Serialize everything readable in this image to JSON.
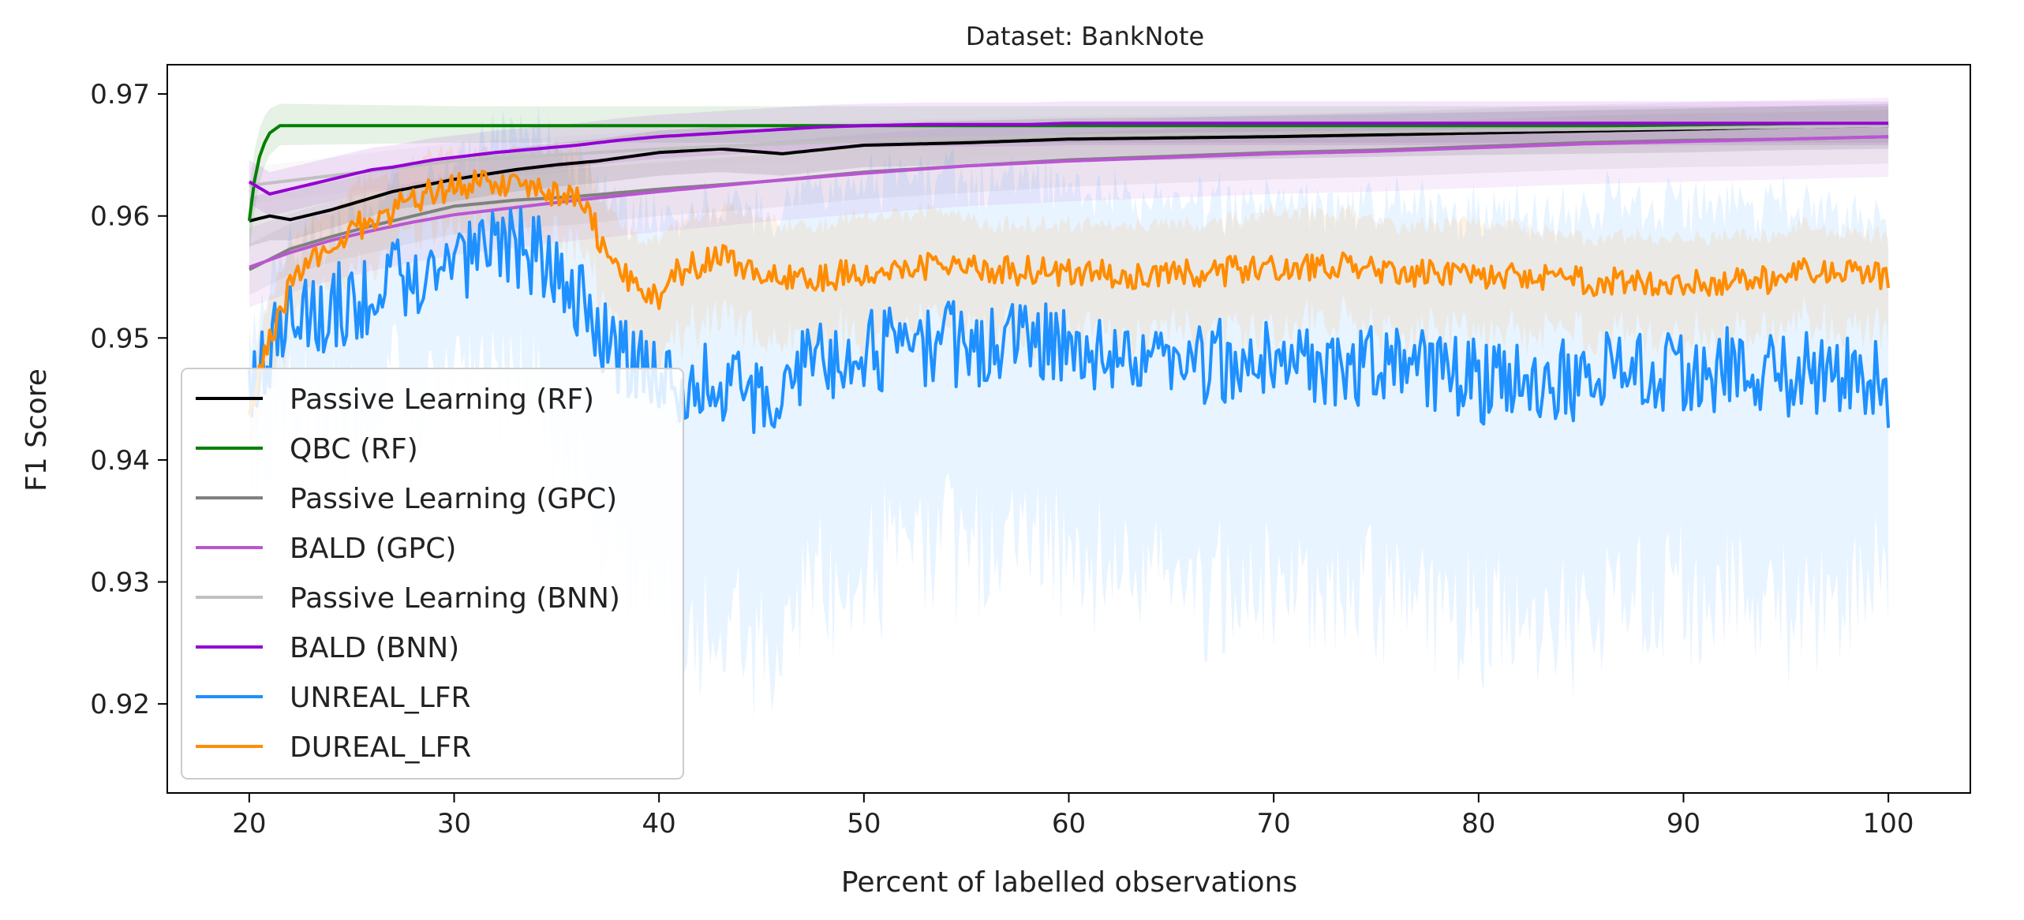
{
  "chart_data": {
    "type": "line",
    "title": "Dataset: BankNote",
    "xlabel": "Percent of labelled observations",
    "ylabel": "F1 Score",
    "xlim": [
      16,
      104
    ],
    "ylim": [
      0.9127,
      0.9724
    ],
    "xticks": [
      20,
      30,
      40,
      50,
      60,
      70,
      80,
      90,
      100
    ],
    "xtick_labels": [
      "20",
      "30",
      "40",
      "50",
      "60",
      "70",
      "80",
      "90",
      "100"
    ],
    "yticks": [
      0.92,
      0.93,
      0.94,
      0.95,
      0.96,
      0.97
    ],
    "ytick_labels": [
      "0.92",
      "0.93",
      "0.94",
      "0.95",
      "0.96",
      "0.97"
    ],
    "legend_position": "lower-left",
    "series": [
      {
        "name": "Passive Learning (RF)",
        "color": "#000000",
        "x": [
          20,
          21,
          22,
          23,
          24,
          25,
          27,
          30,
          33,
          35,
          37,
          40,
          43,
          46,
          50,
          55,
          60,
          70,
          80,
          90,
          95,
          100
        ],
        "y": [
          0.9596,
          0.96,
          0.9597,
          0.9601,
          0.9605,
          0.961,
          0.962,
          0.963,
          0.9638,
          0.9642,
          0.9645,
          0.9652,
          0.9655,
          0.9651,
          0.9658,
          0.966,
          0.9663,
          0.9665,
          0.9668,
          0.9671,
          0.9673,
          0.9674
        ],
        "band_lower": [
          0.9575,
          0.958,
          0.958,
          0.9585,
          0.959,
          0.9595,
          0.9605,
          0.9612,
          0.962,
          0.9624,
          0.9627,
          0.9633,
          0.9636,
          0.9633,
          0.964,
          0.9642,
          0.9645,
          0.9647,
          0.965,
          0.9652,
          0.9654,
          0.9655
        ],
        "band_upper": [
          0.9615,
          0.962,
          0.962,
          0.9625,
          0.9628,
          0.9632,
          0.964,
          0.9648,
          0.9656,
          0.966,
          0.9663,
          0.967,
          0.9673,
          0.967,
          0.9676,
          0.9678,
          0.968,
          0.9682,
          0.9685,
          0.9688,
          0.969,
          0.9692
        ]
      },
      {
        "name": "QBC (RF)",
        "color": "#008000",
        "x": [
          20,
          20.3,
          20.6,
          21,
          21.5,
          30,
          40,
          47,
          50,
          60,
          70,
          80,
          90,
          100
        ],
        "y": [
          0.9596,
          0.9635,
          0.9655,
          0.9668,
          0.9674,
          0.9674,
          0.9674,
          0.9674,
          0.9674,
          0.9674,
          0.9674,
          0.9674,
          0.9674,
          0.9674
        ],
        "band_lower": [
          0.957,
          0.961,
          0.9635,
          0.965,
          0.9658,
          0.966,
          0.966,
          0.966,
          0.966,
          0.966,
          0.966,
          0.966,
          0.966,
          0.966
        ],
        "band_upper": [
          0.962,
          0.966,
          0.9678,
          0.9688,
          0.9692,
          0.969,
          0.969,
          0.969,
          0.969,
          0.969,
          0.969,
          0.969,
          0.969,
          0.969
        ]
      },
      {
        "name": "Passive Learning (GPC)",
        "color": "#808080",
        "x": [
          20,
          22,
          24,
          26,
          28,
          30,
          33,
          36,
          40,
          45,
          50,
          55,
          60,
          65,
          70,
          75,
          80,
          85,
          90,
          95,
          100
        ],
        "y": [
          0.9556,
          0.9573,
          0.9583,
          0.9592,
          0.96,
          0.9608,
          0.9613,
          0.9616,
          0.9622,
          0.9628,
          0.9636,
          0.9641,
          0.9646,
          0.9649,
          0.9652,
          0.9654,
          0.9657,
          0.966,
          0.9662,
          0.9663,
          0.9665
        ],
        "band_lower": [
          0.9535,
          0.9552,
          0.9562,
          0.957,
          0.9578,
          0.9585,
          0.959,
          0.9593,
          0.96,
          0.9606,
          0.9614,
          0.9619,
          0.9624,
          0.9627,
          0.963,
          0.9632,
          0.9635,
          0.9638,
          0.964,
          0.9641,
          0.9643
        ],
        "band_upper": [
          0.9577,
          0.9594,
          0.9604,
          0.9614,
          0.9622,
          0.963,
          0.9636,
          0.9639,
          0.9644,
          0.965,
          0.9658,
          0.9663,
          0.9668,
          0.9671,
          0.9674,
          0.9676,
          0.9679,
          0.9682,
          0.9684,
          0.9685,
          0.9687
        ]
      },
      {
        "name": "BALD (GPC)",
        "color": "#BA55D3",
        "x": [
          20,
          22,
          24,
          26,
          28,
          30,
          33,
          36,
          40,
          45,
          50,
          55,
          60,
          65,
          70,
          75,
          80,
          85,
          90,
          95,
          100
        ],
        "y": [
          0.9558,
          0.957,
          0.958,
          0.9588,
          0.9595,
          0.9601,
          0.9607,
          0.9613,
          0.962,
          0.9628,
          0.9635,
          0.9641,
          0.9645,
          0.9648,
          0.9651,
          0.9653,
          0.9656,
          0.9659,
          0.9661,
          0.9663,
          0.9665
        ],
        "band_lower": [
          0.9525,
          0.9537,
          0.9547,
          0.9555,
          0.9562,
          0.9568,
          0.9574,
          0.958,
          0.9587,
          0.9595,
          0.9602,
          0.9608,
          0.9612,
          0.9615,
          0.9618,
          0.962,
          0.9623,
          0.9626,
          0.9628,
          0.963,
          0.9632
        ],
        "band_upper": [
          0.959,
          0.9602,
          0.9612,
          0.962,
          0.9627,
          0.9633,
          0.9639,
          0.9645,
          0.9652,
          0.966,
          0.9667,
          0.9673,
          0.9677,
          0.968,
          0.9683,
          0.9685,
          0.9688,
          0.9691,
          0.9693,
          0.9695,
          0.9697
        ]
      },
      {
        "name": "Passive Learning (BNN)",
        "color": "#C0C0C0",
        "x": [
          20,
          30,
          40,
          50,
          60,
          70,
          80,
          90,
          100
        ],
        "y": [
          0.9625,
          0.9645,
          0.9655,
          0.9662,
          0.9666,
          0.9668,
          0.967,
          0.9672,
          0.9674
        ],
        "band_lower": [
          0.961,
          0.963,
          0.964,
          0.9646,
          0.965,
          0.9652,
          0.9654,
          0.9656,
          0.9658
        ],
        "band_upper": [
          0.964,
          0.966,
          0.967,
          0.9678,
          0.9682,
          0.9684,
          0.9686,
          0.9688,
          0.969
        ]
      },
      {
        "name": "BALD (BNN)",
        "color": "#9400D3",
        "x": [
          20,
          21,
          22,
          23,
          24,
          25,
          26,
          27,
          28,
          29,
          30,
          32,
          34,
          36,
          38,
          40,
          43,
          46,
          48,
          50,
          53,
          56,
          58,
          60,
          65,
          70,
          75,
          80,
          85,
          90,
          95,
          100
        ],
        "y": [
          0.9628,
          0.9618,
          0.9622,
          0.9626,
          0.963,
          0.9634,
          0.9638,
          0.964,
          0.9643,
          0.9646,
          0.9648,
          0.9652,
          0.9655,
          0.9658,
          0.9662,
          0.9665,
          0.9668,
          0.9671,
          0.9673,
          0.9674,
          0.9675,
          0.9675,
          0.9675,
          0.9676,
          0.9676,
          0.9676,
          0.9676,
          0.9676,
          0.9676,
          0.9676,
          0.9676,
          0.9676
        ],
        "band_lower": [
          0.961,
          0.96,
          0.9604,
          0.9608,
          0.9612,
          0.9616,
          0.962,
          0.9622,
          0.9625,
          0.9628,
          0.963,
          0.9634,
          0.9637,
          0.964,
          0.9644,
          0.9647,
          0.965,
          0.9653,
          0.9655,
          0.9656,
          0.9657,
          0.9657,
          0.9657,
          0.9658,
          0.9658,
          0.9658,
          0.9658,
          0.9658,
          0.9658,
          0.9658,
          0.9658,
          0.9658
        ],
        "band_upper": [
          0.9646,
          0.9636,
          0.964,
          0.9644,
          0.9648,
          0.9652,
          0.9656,
          0.9658,
          0.9661,
          0.9664,
          0.9666,
          0.967,
          0.9673,
          0.9676,
          0.968,
          0.9683,
          0.9686,
          0.9689,
          0.9691,
          0.9692,
          0.9693,
          0.9693,
          0.9693,
          0.9694,
          0.9694,
          0.9694,
          0.9694,
          0.9694,
          0.9694,
          0.9694,
          0.9694,
          0.9694
        ]
      },
      {
        "name": "UNREAL_LFR",
        "color": "#1E90FF",
        "x": [
          20,
          20.5,
          21,
          22,
          23,
          24,
          25,
          26,
          27,
          28,
          29,
          30,
          31,
          32,
          33,
          34,
          35,
          36,
          37,
          38,
          39,
          40,
          41,
          42,
          43,
          44,
          45,
          46,
          47,
          48,
          49,
          50,
          52,
          54,
          56,
          58,
          60,
          62,
          64,
          66,
          68,
          70,
          72,
          74,
          76,
          78,
          80,
          82,
          84,
          86,
          88,
          90,
          92,
          94,
          96,
          98,
          100
        ],
        "y": [
          0.944,
          0.947,
          0.949,
          0.951,
          0.952,
          0.9525,
          0.953,
          0.9535,
          0.9545,
          0.955,
          0.9555,
          0.956,
          0.9565,
          0.957,
          0.9575,
          0.957,
          0.956,
          0.953,
          0.951,
          0.949,
          0.9475,
          0.946,
          0.946,
          0.946,
          0.9465,
          0.946,
          0.945,
          0.946,
          0.9475,
          0.948,
          0.9485,
          0.949,
          0.949,
          0.9495,
          0.9495,
          0.9495,
          0.949,
          0.9485,
          0.948,
          0.948,
          0.9482,
          0.9485,
          0.948,
          0.948,
          0.9475,
          0.947,
          0.9465,
          0.946,
          0.9465,
          0.947,
          0.9472,
          0.947,
          0.9475,
          0.9472,
          0.947,
          0.9468,
          0.946
        ],
        "band_lower": [
          0.94,
          0.942,
          0.943,
          0.944,
          0.945,
          0.945,
          0.945,
          0.946,
          0.947,
          0.947,
          0.948,
          0.948,
          0.947,
          0.947,
          0.948,
          0.946,
          0.944,
          0.941,
          0.938,
          0.935,
          0.932,
          0.93,
          0.928,
          0.927,
          0.928,
          0.927,
          0.926,
          0.928,
          0.93,
          0.931,
          0.932,
          0.933,
          0.934,
          0.935,
          0.935,
          0.935,
          0.934,
          0.933,
          0.932,
          0.931,
          0.931,
          0.932,
          0.931,
          0.931,
          0.93,
          0.929,
          0.928,
          0.928,
          0.929,
          0.93,
          0.93,
          0.93,
          0.931,
          0.93,
          0.93,
          0.93,
          0.933
        ],
        "band_upper": [
          0.948,
          0.951,
          0.954,
          0.956,
          0.957,
          0.958,
          0.959,
          0.96,
          0.961,
          0.962,
          0.962,
          0.963,
          0.964,
          0.965,
          0.966,
          0.966,
          0.965,
          0.963,
          0.962,
          0.96,
          0.959,
          0.959,
          0.959,
          0.96,
          0.96,
          0.96,
          0.959,
          0.96,
          0.961,
          0.961,
          0.962,
          0.962,
          0.962,
          0.962,
          0.962,
          0.962,
          0.961,
          0.961,
          0.96,
          0.96,
          0.96,
          0.961,
          0.96,
          0.96,
          0.96,
          0.959,
          0.959,
          0.959,
          0.959,
          0.96,
          0.96,
          0.96,
          0.96,
          0.96,
          0.96,
          0.959,
          0.959
        ],
        "noise_amplitude": 0.0035
      },
      {
        "name": "DUREAL_LFR",
        "color": "#FF8C00",
        "x": [
          20,
          20.5,
          21,
          21.5,
          22,
          23,
          24,
          25,
          26,
          27,
          28,
          29,
          30,
          31,
          32,
          33,
          34,
          35,
          36,
          36.5,
          37,
          37.5,
          38,
          39,
          40,
          41,
          42,
          43,
          44,
          45,
          46,
          48,
          50,
          52,
          54,
          56,
          58,
          60,
          62,
          64,
          66,
          68,
          70,
          72,
          74,
          76,
          78,
          80,
          82,
          84,
          86,
          88,
          90,
          92,
          94,
          96,
          98,
          100
        ],
        "y": [
          0.944,
          0.947,
          0.95,
          0.952,
          0.954,
          0.956,
          0.9575,
          0.9588,
          0.9598,
          0.9605,
          0.9612,
          0.962,
          0.9625,
          0.9628,
          0.9628,
          0.9625,
          0.9622,
          0.9618,
          0.9615,
          0.9605,
          0.9585,
          0.956,
          0.9555,
          0.9545,
          0.9535,
          0.9555,
          0.956,
          0.9565,
          0.956,
          0.9555,
          0.9552,
          0.955,
          0.9555,
          0.956,
          0.9558,
          0.9556,
          0.9555,
          0.9553,
          0.9552,
          0.9552,
          0.9553,
          0.9555,
          0.9556,
          0.9558,
          0.956,
          0.9556,
          0.9552,
          0.955,
          0.955,
          0.9548,
          0.9546,
          0.9546,
          0.9546,
          0.9545,
          0.9548,
          0.9555,
          0.9552,
          0.9549
        ],
        "band_lower": [
          0.942,
          0.944,
          0.947,
          0.949,
          0.951,
          0.953,
          0.955,
          0.956,
          0.957,
          0.958,
          0.959,
          0.96,
          0.96,
          0.96,
          0.96,
          0.96,
          0.959,
          0.959,
          0.958,
          0.957,
          0.955,
          0.952,
          0.951,
          0.95,
          0.949,
          0.951,
          0.952,
          0.952,
          0.952,
          0.951,
          0.951,
          0.951,
          0.951,
          0.952,
          0.952,
          0.951,
          0.951,
          0.951,
          0.951,
          0.951,
          0.951,
          0.951,
          0.951,
          0.952,
          0.952,
          0.951,
          0.951,
          0.951,
          0.951,
          0.951,
          0.951,
          0.951,
          0.951,
          0.951,
          0.951,
          0.952,
          0.951,
          0.951
        ],
        "band_upper": [
          0.946,
          0.95,
          0.953,
          0.955,
          0.957,
          0.959,
          0.96,
          0.962,
          0.963,
          0.963,
          0.964,
          0.965,
          0.965,
          0.965,
          0.965,
          0.965,
          0.965,
          0.965,
          0.965,
          0.964,
          0.962,
          0.96,
          0.959,
          0.958,
          0.958,
          0.959,
          0.96,
          0.96,
          0.96,
          0.96,
          0.959,
          0.959,
          0.96,
          0.96,
          0.96,
          0.959,
          0.959,
          0.959,
          0.959,
          0.959,
          0.959,
          0.959,
          0.96,
          0.96,
          0.96,
          0.959,
          0.959,
          0.959,
          0.959,
          0.958,
          0.958,
          0.958,
          0.958,
          0.958,
          0.958,
          0.959,
          0.958,
          0.958
        ],
        "noise_amplitude": 0.0012
      }
    ]
  }
}
